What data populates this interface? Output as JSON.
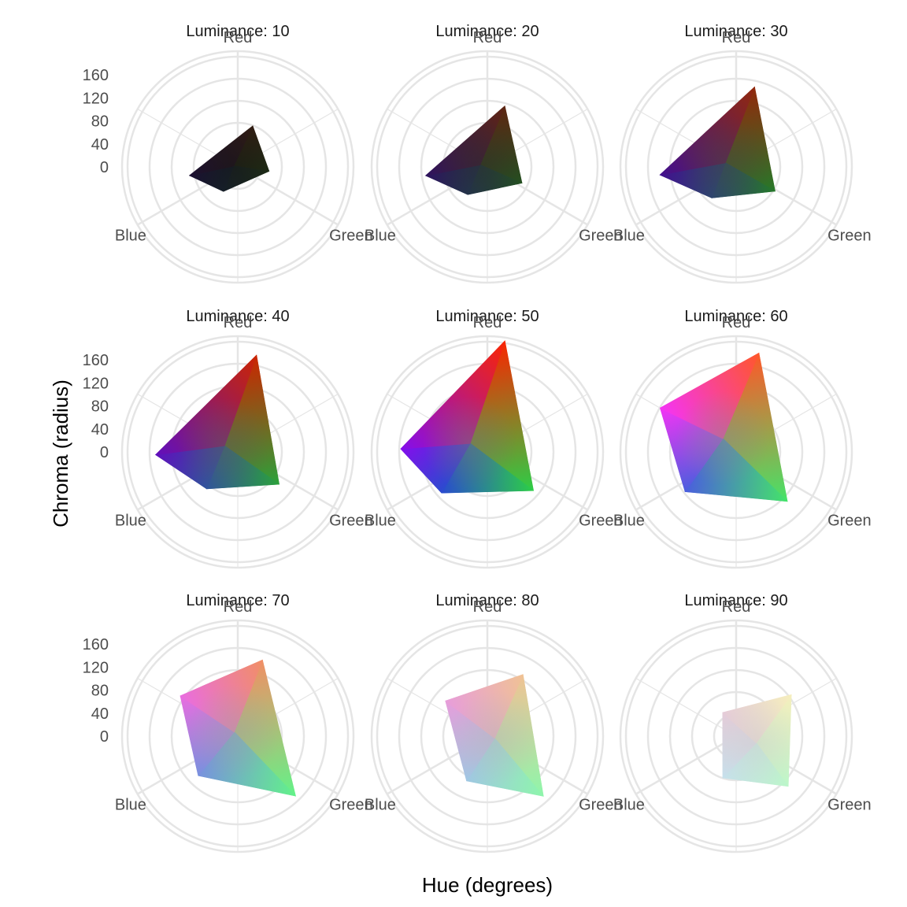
{
  "chart_data": {
    "type": "polar-area",
    "xlabel": "Hue (degrees)",
    "ylabel": "Chroma (radius)",
    "radial_ticks": [
      0,
      40,
      80,
      120,
      160
    ],
    "radial_tick_labels": [
      "0",
      "40",
      "80",
      "120",
      "160"
    ],
    "radial_range": [
      -40,
      170
    ],
    "grid": true,
    "hue_direction_labels": [
      {
        "name": "Red",
        "hue": 0
      },
      {
        "name": "Green",
        "hue": 120
      },
      {
        "name": "Blue",
        "hue": 240
      }
    ],
    "panels": [
      {
        "title": "Luminance: 10",
        "luminance": 10,
        "gamut": [
          {
            "hue": 20,
            "chroma": 40
          },
          {
            "hue": 98,
            "chroma": 18
          },
          {
            "hue": 210,
            "chroma": 12
          },
          {
            "hue": 260,
            "chroma": 50
          }
        ]
      },
      {
        "title": "Luminance: 20",
        "luminance": 20,
        "gamut": [
          {
            "hue": 16,
            "chroma": 76
          },
          {
            "hue": 115,
            "chroma": 30
          },
          {
            "hue": 215,
            "chroma": 22
          },
          {
            "hue": 262,
            "chroma": 74
          }
        ]
      },
      {
        "title": "Luminance: 30",
        "luminance": 30,
        "gamut": [
          {
            "hue": 13,
            "chroma": 110
          },
          {
            "hue": 122,
            "chroma": 44
          },
          {
            "hue": 218,
            "chroma": 32
          },
          {
            "hue": 264,
            "chroma": 100
          }
        ]
      },
      {
        "title": "Luminance: 40",
        "luminance": 40,
        "gamut": [
          {
            "hue": 11,
            "chroma": 140
          },
          {
            "hue": 128,
            "chroma": 56
          },
          {
            "hue": 220,
            "chroma": 48
          },
          {
            "hue": 268,
            "chroma": 110
          }
        ]
      },
      {
        "title": "Luminance: 50",
        "luminance": 50,
        "gamut": [
          {
            "hue": 9,
            "chroma": 165
          },
          {
            "hue": 130,
            "chroma": 70
          },
          {
            "hue": 228,
            "chroma": 72
          },
          {
            "hue": 272,
            "chroma": 118
          }
        ]
      },
      {
        "title": "Luminance: 60",
        "luminance": 60,
        "gamut": [
          {
            "hue": 13,
            "chroma": 145
          },
          {
            "hue": 134,
            "chroma": 90
          },
          {
            "hue": 232,
            "chroma": 78
          },
          {
            "hue": 300,
            "chroma": 120
          }
        ]
      },
      {
        "title": "Luminance: 70",
        "luminance": 70,
        "gamut": [
          {
            "hue": 18,
            "chroma": 106
          },
          {
            "hue": 136,
            "chroma": 112
          },
          {
            "hue": 225,
            "chroma": 62
          },
          {
            "hue": 305,
            "chroma": 88
          }
        ]
      },
      {
        "title": "Luminance: 80",
        "luminance": 80,
        "gamut": [
          {
            "hue": 30,
            "chroma": 90
          },
          {
            "hue": 137,
            "chroma": 110
          },
          {
            "hue": 205,
            "chroma": 50
          },
          {
            "hue": 310,
            "chroma": 60
          }
        ]
      },
      {
        "title": "Luminance: 90",
        "luminance": 90,
        "gamut": [
          {
            "hue": 53,
            "chroma": 86
          },
          {
            "hue": 134,
            "chroma": 92
          },
          {
            "hue": 198,
            "chroma": 40
          },
          {
            "hue": 330,
            "chroma": 10
          }
        ]
      }
    ]
  },
  "colors": {
    "grid": "#e5e5e5",
    "background": "#ffffff",
    "dir_label": "#4d4d4d"
  }
}
